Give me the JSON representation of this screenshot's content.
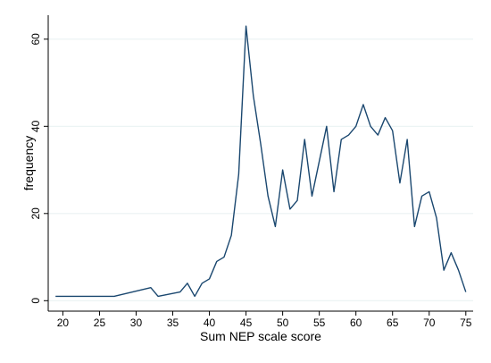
{
  "chart_data": {
    "type": "line",
    "xlabel": "Sum NEP scale score",
    "ylabel": "frequency",
    "xlim": [
      18,
      76
    ],
    "ylim": [
      -2.4,
      65.5
    ],
    "x_ticks": [
      20,
      25,
      30,
      35,
      40,
      45,
      50,
      55,
      60,
      65,
      70,
      75
    ],
    "y_ticks": [
      0,
      20,
      40,
      60
    ],
    "grid": "horizontal",
    "line_color": "#1a476f",
    "series": [
      {
        "x": [
          19,
          20,
          21,
          22,
          23,
          24,
          25,
          26,
          27,
          32,
          33,
          36,
          37,
          38,
          39,
          40,
          41,
          42,
          43,
          44,
          45,
          46,
          47,
          48,
          49,
          50,
          51,
          52,
          53,
          54,
          55,
          56,
          57,
          58,
          59,
          60,
          61,
          62,
          63,
          64,
          65,
          66,
          67,
          68,
          69,
          70,
          71,
          72,
          73,
          74,
          75
        ],
        "y": [
          1,
          1,
          1,
          1,
          1,
          1,
          1,
          1,
          1,
          3,
          1,
          2,
          4,
          1,
          4,
          5,
          9,
          10,
          15,
          29,
          63,
          47,
          36,
          24,
          17,
          30,
          21,
          23,
          37,
          24,
          32,
          40,
          25,
          37,
          38,
          40,
          45,
          40,
          38,
          42,
          39,
          27,
          37,
          17,
          24,
          25,
          19,
          7,
          11,
          7,
          2
        ]
      }
    ]
  }
}
